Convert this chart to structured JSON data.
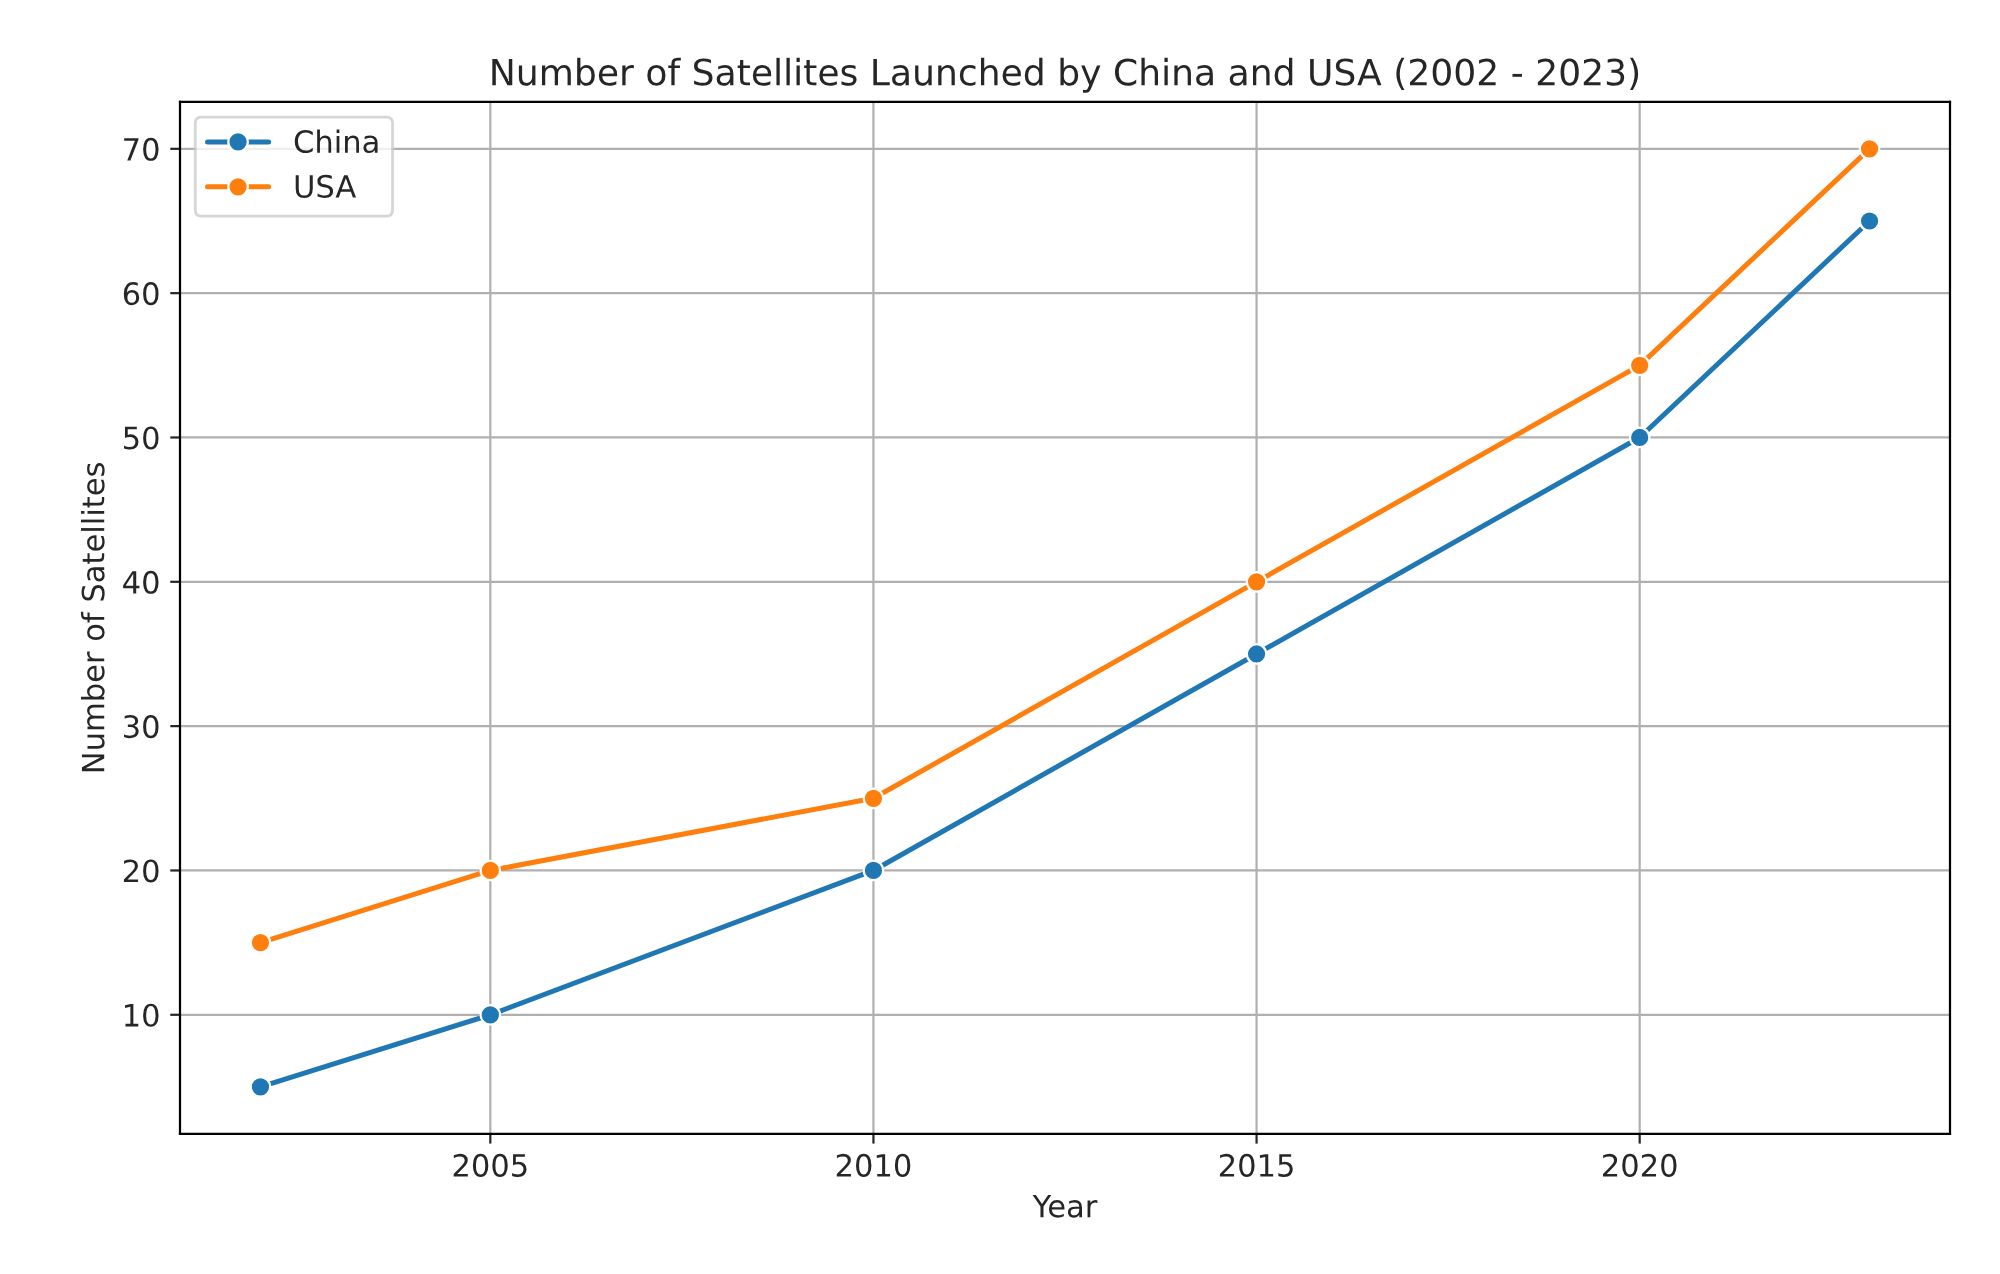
{
  "chart_data": {
    "type": "line",
    "title": "Number of Satellites Launched by China and USA (2002 - 2023)",
    "xlabel": "Year",
    "ylabel": "Number of Satellites",
    "x": [
      2002,
      2005,
      2010,
      2015,
      2020,
      2023
    ],
    "series": [
      {
        "name": "China",
        "color": "#1f77b4",
        "values": [
          5,
          10,
          20,
          35,
          50,
          65
        ]
      },
      {
        "name": "USA",
        "color": "#ff7f0e",
        "values": [
          15,
          20,
          25,
          40,
          55,
          70
        ]
      }
    ],
    "xlim": [
      2000.95,
      2024.05
    ],
    "xticks": [
      2005,
      2010,
      2015,
      2020
    ],
    "ylim": [
      1.75,
      73.25
    ],
    "yticks": [
      10,
      20,
      30,
      40,
      50,
      60,
      70
    ],
    "grid": true,
    "legend": "top left",
    "marker": "circle",
    "line_style": "solid"
  }
}
